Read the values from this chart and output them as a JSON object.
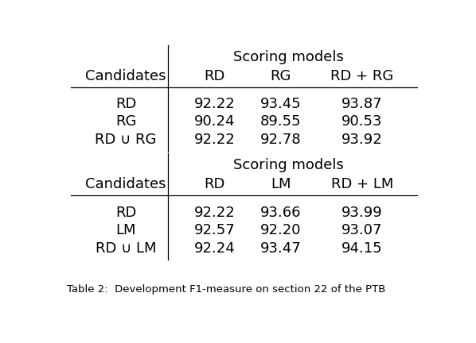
{
  "table1": {
    "header_top": "Scoring models",
    "col_headers": [
      "Candidates",
      "RD",
      "RG",
      "RD + RG"
    ],
    "rows": [
      [
        "RD",
        "92.22",
        "93.45",
        "93.87"
      ],
      [
        "RG",
        "90.24",
        "89.55",
        "90.53"
      ],
      [
        "RD ∪ RG",
        "92.22",
        "92.78",
        "93.92"
      ]
    ]
  },
  "table2": {
    "header_top": "Scoring models",
    "col_headers": [
      "Candidates",
      "RD",
      "LM",
      "RD + LM"
    ],
    "rows": [
      [
        "RD",
        "92.22",
        "93.66",
        "93.99"
      ],
      [
        "LM",
        "92.57",
        "92.20",
        "93.07"
      ],
      [
        "RD ∪ LM",
        "92.24",
        "93.47",
        "94.15"
      ]
    ]
  },
  "caption": "Table 2:  Development F1-measure on section 22 of the PTB",
  "bg_color": "#ffffff",
  "text_color": "#000000",
  "font_size": 13
}
